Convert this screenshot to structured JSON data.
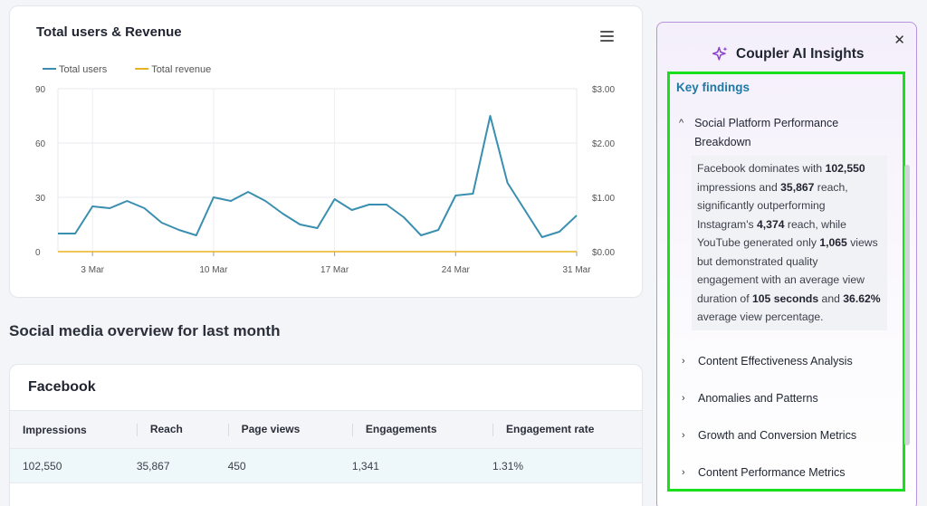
{
  "chart_card": {
    "title": "Total users & Revenue",
    "menu_icon": "hamburger-menu-icon"
  },
  "chart_data": {
    "type": "line",
    "title": "Total users & Revenue",
    "legend_position": "top-left",
    "grid": true,
    "x_tick_labels": [
      "3 Mar",
      "10 Mar",
      "17 Mar",
      "24 Mar",
      "31 Mar"
    ],
    "y_left": {
      "ticks": [
        "0",
        "30",
        "60",
        "90"
      ],
      "ylim": [
        0,
        90
      ]
    },
    "y_right": {
      "ticks": [
        "$0.00",
        "$1.00",
        "$2.00",
        "$3.00"
      ],
      "ylim": [
        0,
        3
      ]
    },
    "x": [
      "1 Mar",
      "2 Mar",
      "3 Mar",
      "4 Mar",
      "5 Mar",
      "6 Mar",
      "7 Mar",
      "8 Mar",
      "9 Mar",
      "10 Mar",
      "11 Mar",
      "12 Mar",
      "13 Mar",
      "14 Mar",
      "15 Mar",
      "16 Mar",
      "17 Mar",
      "18 Mar",
      "19 Mar",
      "20 Mar",
      "21 Mar",
      "22 Mar",
      "23 Mar",
      "24 Mar",
      "25 Mar",
      "26 Mar",
      "27 Mar",
      "28 Mar",
      "29 Mar",
      "30 Mar",
      "31 Mar"
    ],
    "series": [
      {
        "name": "Total users",
        "color": "#3a8fb0",
        "axis": "left",
        "values": [
          10,
          10,
          25,
          24,
          28,
          24,
          16,
          12,
          9,
          30,
          28,
          33,
          28,
          21,
          15,
          13,
          29,
          23,
          26,
          26,
          19,
          9,
          12,
          31,
          32,
          75,
          38,
          23,
          8,
          11,
          20
        ]
      },
      {
        "name": "Total revenue",
        "color": "#e8b321",
        "axis": "right",
        "values": [
          0,
          0,
          0,
          0,
          0,
          0,
          0,
          0,
          0,
          0,
          0,
          0,
          0,
          0,
          0,
          0,
          0,
          0,
          0,
          0,
          0,
          0,
          0,
          0,
          0,
          0,
          0,
          0,
          0,
          0,
          0
        ]
      }
    ]
  },
  "section": {
    "heading": "Social media overview for last month"
  },
  "facebook": {
    "title": "Facebook",
    "columns": [
      "Impressions",
      "Reach",
      "Page views",
      "Engagements",
      "Engagement rate"
    ],
    "row": [
      "102,550",
      "35,867",
      "450",
      "1,341",
      "1.31%"
    ]
  },
  "ai_panel": {
    "title": "Coupler AI Insights",
    "close_icon": "close-icon",
    "sparkle_icon": "sparkle-icon",
    "accent_color": "#b893e0",
    "highlight_color": "#19e01d",
    "key_findings_label": "Key findings",
    "open_item": {
      "title": "Social Platform Performance Breakdown",
      "text_parts": [
        "Facebook dominates with ",
        "102,550",
        " impressions and ",
        "35,867",
        " reach, significantly outperforming Instagram's ",
        "4,374",
        " reach, while YouTube generated only ",
        "1,065",
        " views but demonstrated quality engagement with an average view duration of ",
        "105 seconds",
        " and ",
        "36.62%",
        " average view percentage."
      ]
    },
    "collapsed_items": [
      "Content Effectiveness Analysis",
      "Anomalies and Patterns",
      "Growth and Conversion Metrics",
      "Content Performance Metrics"
    ]
  }
}
